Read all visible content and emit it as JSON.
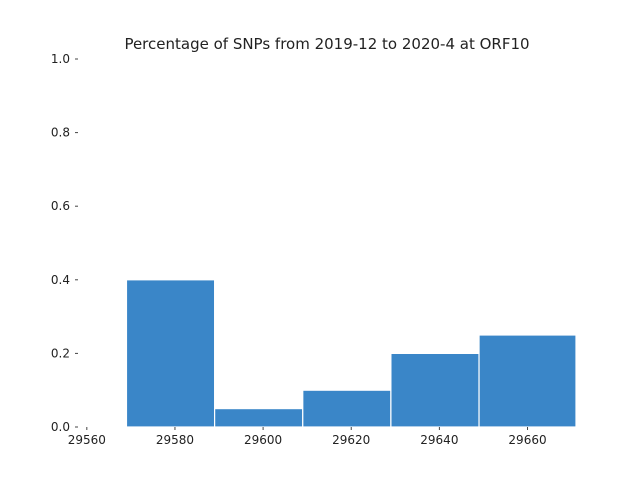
{
  "chart_data": {
    "type": "bar",
    "title": "Percentage of SNPs from 2019-12 to 2020-4 at ORF10",
    "xlabel": "",
    "ylabel": "",
    "xlim": [
      29558,
      29671
    ],
    "ylim": [
      0,
      1.0
    ],
    "x_ticks": [
      "29560",
      "29580",
      "29600",
      "29620",
      "29640",
      "29660"
    ],
    "x_tick_values": [
      29560,
      29580,
      29600,
      29620,
      29640,
      29660
    ],
    "y_ticks": [
      "0.0",
      "0.2",
      "0.4",
      "0.6",
      "0.8",
      "1.0"
    ],
    "y_tick_values": [
      0.0,
      0.2,
      0.4,
      0.6,
      0.8,
      1.0
    ],
    "bins": [
      {
        "x0": 29558,
        "x1": 29569,
        "value": 0.0
      },
      {
        "x0": 29569,
        "x1": 29589,
        "value": 0.4
      },
      {
        "x0": 29589,
        "x1": 29609,
        "value": 0.05
      },
      {
        "x0": 29609,
        "x1": 29629,
        "value": 0.1
      },
      {
        "x0": 29629,
        "x1": 29649,
        "value": 0.2
      },
      {
        "x0": 29649,
        "x1": 29671,
        "value": 0.25
      }
    ],
    "grid": false,
    "legend": "none",
    "colors": {
      "bar": "#3a86c8",
      "bar_edge": "#ffffff",
      "text": "#222222"
    }
  }
}
